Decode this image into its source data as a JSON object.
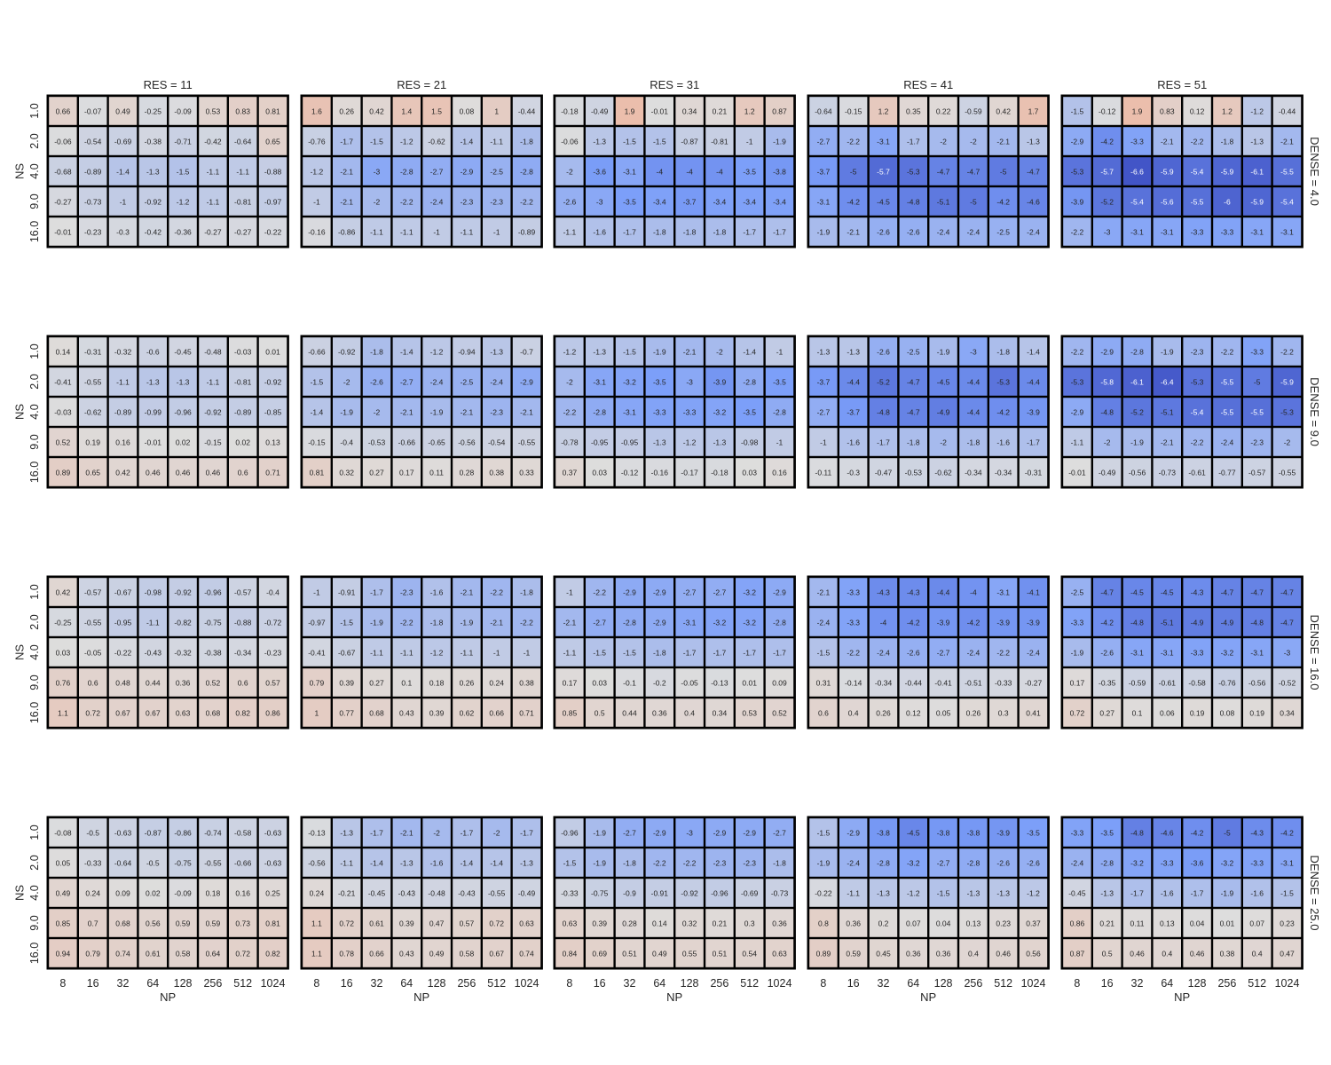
{
  "chart_data": {
    "type": "heatmap",
    "layout": "facet-grid",
    "col_facet_labels": [
      "RES = 11",
      "RES = 21",
      "RES = 31",
      "RES = 41",
      "RES = 51"
    ],
    "row_facet_labels": [
      "DENSE = 4.0",
      "DENSE = 9.0",
      "DENSE = 16.0",
      "DENSE = 25.0"
    ],
    "x_categories": [
      "8",
      "16",
      "32",
      "64",
      "128",
      "256",
      "512",
      "1024"
    ],
    "y_categories": [
      "1.0",
      "2.0",
      "4.0",
      "9.0",
      "16.0"
    ],
    "xlabel": "NP",
    "ylabel": "NS",
    "colormap": "coolwarm",
    "color_range": [
      -7,
      7
    ],
    "panels": [
      [
        [
          [
            0.66,
            -0.07,
            0.49,
            -0.25,
            -0.09,
            0.53,
            0.83,
            0.81
          ],
          [
            -0.06,
            -0.54,
            -0.69,
            -0.38,
            -0.71,
            -0.42,
            -0.64,
            0.65
          ],
          [
            -0.68,
            -0.89,
            -1.4,
            -1.3,
            -1.5,
            -1.1,
            -1.1,
            -0.88
          ],
          [
            -0.27,
            -0.73,
            -1,
            -0.92,
            -1.2,
            -1.1,
            -0.81,
            -0.97
          ],
          [
            -0.01,
            -0.23,
            -0.3,
            -0.42,
            -0.36,
            -0.27,
            -0.27,
            -0.22
          ]
        ],
        [
          [
            1.6,
            0.26,
            0.42,
            1.4,
            1.5,
            0.08,
            1,
            -0.44
          ],
          [
            -0.76,
            -1.7,
            -1.5,
            -1.2,
            -0.62,
            -1.4,
            -1.1,
            -1.8
          ],
          [
            -1.2,
            -2.1,
            -3,
            -2.8,
            -2.7,
            -2.9,
            -2.5,
            -2.8
          ],
          [
            -1,
            -2.1,
            -2,
            -2.2,
            -2.4,
            -2.3,
            -2.3,
            -2.2
          ],
          [
            -0.16,
            -0.86,
            -1.1,
            -1.1,
            -1,
            -1.1,
            -1,
            -0.89
          ]
        ],
        [
          [
            -0.18,
            -0.49,
            1.9,
            -0.01,
            0.34,
            0.21,
            1.2,
            0.87
          ],
          [
            -0.06,
            -1.3,
            -1.5,
            -1.5,
            -0.87,
            -0.81,
            -1,
            -1.9
          ],
          [
            -2,
            -3.6,
            -3.1,
            -4,
            -4,
            -4,
            -3.5,
            -3.8
          ],
          [
            -2.6,
            -3,
            -3.5,
            -3.4,
            -3.7,
            -3.4,
            -3.4,
            -3.4
          ],
          [
            -1.1,
            -1.6,
            -1.7,
            -1.8,
            -1.8,
            -1.8,
            -1.7,
            -1.7
          ]
        ],
        [
          [
            -0.64,
            -0.15,
            1.2,
            0.35,
            0.22,
            -0.59,
            0.42,
            1.7
          ],
          [
            -2.7,
            -2.2,
            -3.1,
            -1.7,
            -2,
            -2,
            -2.1,
            -1.3
          ],
          [
            -3.7,
            -5,
            -5.7,
            -5.3,
            -4.7,
            -4.7,
            -5,
            -4.7
          ],
          [
            -3.1,
            -4.2,
            -4.5,
            -4.8,
            -5.1,
            -5,
            -4.2,
            -4.6
          ],
          [
            -1.9,
            -2.1,
            -2.6,
            -2.6,
            -2.4,
            -2.4,
            -2.5,
            -2.4
          ]
        ],
        [
          [
            -1.5,
            -0.12,
            1.9,
            0.83,
            0.12,
            1.2,
            -1.2,
            -0.44
          ],
          [
            -2.9,
            -4.2,
            -3.3,
            -2.1,
            -2.2,
            -1.8,
            -1.3,
            -2.1
          ],
          [
            -5.3,
            -5.7,
            -6.6,
            -5.9,
            -5.4,
            -5.9,
            -6.1,
            -5.5
          ],
          [
            -3.9,
            -5.2,
            -5.4,
            -5.6,
            -5.5,
            -6,
            -5.9,
            -5.4
          ],
          [
            -2.2,
            -3,
            -3.1,
            -3.1,
            -3.3,
            -3.3,
            -3.1,
            -3.1
          ]
        ]
      ],
      [
        [
          [
            0.14,
            -0.31,
            -0.32,
            -0.6,
            -0.45,
            -0.48,
            -0.03,
            0.01
          ],
          [
            -0.41,
            -0.55,
            -1.1,
            -1.3,
            -1.3,
            -1.1,
            -0.81,
            -0.92
          ],
          [
            -0.03,
            -0.62,
            -0.89,
            -0.99,
            -0.96,
            -0.92,
            -0.89,
            -0.85
          ],
          [
            0.52,
            0.19,
            0.16,
            -0.01,
            0.02,
            -0.15,
            0.02,
            0.13
          ],
          [
            0.89,
            0.65,
            0.42,
            0.46,
            0.46,
            0.46,
            0.6,
            0.71
          ]
        ],
        [
          [
            -0.66,
            -0.92,
            -1.8,
            -1.4,
            -1.2,
            -0.94,
            -1.3,
            -0.7
          ],
          [
            -1.5,
            -2,
            -2.6,
            -2.7,
            -2.4,
            -2.5,
            -2.4,
            -2.9
          ],
          [
            -1.4,
            -1.9,
            -2,
            -2.1,
            -1.9,
            -2.1,
            -2.3,
            -2.1
          ],
          [
            -0.15,
            -0.4,
            -0.53,
            -0.66,
            -0.65,
            -0.56,
            -0.54,
            -0.55
          ],
          [
            0.81,
            0.32,
            0.27,
            0.17,
            0.11,
            0.28,
            0.38,
            0.33
          ]
        ],
        [
          [
            -1.2,
            -1.3,
            -1.5,
            -1.9,
            -2.1,
            -2,
            -1.4,
            -1
          ],
          [
            -2,
            -3.1,
            -3.2,
            -3.5,
            -3,
            -3.9,
            -2.8,
            -3.5
          ],
          [
            -2.2,
            -2.8,
            -3.1,
            -3.3,
            -3.3,
            -3.2,
            -3.5,
            -2.8
          ],
          [
            -0.78,
            -0.95,
            -0.95,
            -1.3,
            -1.2,
            -1.3,
            -0.98,
            -1
          ],
          [
            0.37,
            0.03,
            -0.12,
            -0.16,
            -0.17,
            -0.18,
            0.03,
            0.16
          ]
        ],
        [
          [
            -1.3,
            -1.3,
            -2.6,
            -2.5,
            -1.9,
            -3,
            -1.8,
            -1.4
          ],
          [
            -3.7,
            -4.4,
            -5.2,
            -4.7,
            -4.5,
            -4.4,
            -5.3,
            -4.4
          ],
          [
            -2.7,
            -3.7,
            -4.8,
            -4.7,
            -4.9,
            -4.4,
            -4.2,
            -3.9
          ],
          [
            -1,
            -1.6,
            -1.7,
            -1.8,
            -2,
            -1.8,
            -1.6,
            -1.7
          ],
          [
            -0.11,
            -0.3,
            -0.47,
            -0.53,
            -0.62,
            -0.34,
            -0.34,
            -0.31
          ]
        ],
        [
          [
            -2.2,
            -2.9,
            -2.8,
            -1.9,
            -2.3,
            -2.2,
            -3.3,
            -2.2
          ],
          [
            -5.3,
            -5.8,
            -6.1,
            -6.4,
            -5.3,
            -5.5,
            -5,
            -5.9
          ],
          [
            -2.9,
            -4.8,
            -5.2,
            -5.1,
            -5.4,
            -5.5,
            -5.5,
            -5.3
          ],
          [
            -1.1,
            -2,
            -1.9,
            -2.1,
            -2.2,
            -2.4,
            -2.3,
            -2
          ],
          [
            -0.01,
            -0.49,
            -0.56,
            -0.73,
            -0.61,
            -0.77,
            -0.57,
            -0.55
          ]
        ]
      ],
      [
        [
          [
            0.42,
            -0.57,
            -0.67,
            -0.98,
            -0.92,
            -0.96,
            -0.57,
            -0.4
          ],
          [
            -0.25,
            -0.55,
            -0.95,
            -1.1,
            -0.82,
            -0.75,
            -0.88,
            -0.72
          ],
          [
            0.03,
            -0.05,
            -0.22,
            -0.43,
            -0.32,
            -0.38,
            -0.34,
            -0.23
          ],
          [
            0.76,
            0.6,
            0.48,
            0.44,
            0.36,
            0.52,
            0.6,
            0.57
          ],
          [
            1.1,
            0.72,
            0.67,
            0.67,
            0.63,
            0.68,
            0.82,
            0.86
          ]
        ],
        [
          [
            -1,
            -0.91,
            -1.7,
            -2.3,
            -1.6,
            -2.1,
            -2.2,
            -1.8
          ],
          [
            -0.97,
            -1.5,
            -1.9,
            -2.2,
            -1.8,
            -1.9,
            -2.1,
            -2.2
          ],
          [
            -0.41,
            -0.67,
            -1.1,
            -1.1,
            -1.2,
            -1.1,
            -1,
            -1
          ],
          [
            0.79,
            0.39,
            0.27,
            0.1,
            0.18,
            0.26,
            0.24,
            0.38
          ],
          [
            1,
            0.77,
            0.68,
            0.43,
            0.39,
            0.62,
            0.66,
            0.71
          ]
        ],
        [
          [
            -1,
            -2.2,
            -2.9,
            -2.9,
            -2.7,
            -2.7,
            -3.2,
            -2.9
          ],
          [
            -2.1,
            -2.7,
            -2.8,
            -2.9,
            -3.1,
            -3.2,
            -3.2,
            -2.8
          ],
          [
            -1.1,
            -1.5,
            -1.5,
            -1.8,
            -1.7,
            -1.7,
            -1.7,
            -1.7
          ],
          [
            0.17,
            0.03,
            -0.1,
            -0.2,
            -0.05,
            -0.13,
            0.01,
            0.09
          ],
          [
            0.85,
            0.5,
            0.44,
            0.36,
            0.4,
            0.34,
            0.53,
            0.52
          ]
        ],
        [
          [
            -2.1,
            -3.3,
            -4.3,
            -4.3,
            -4.4,
            -4,
            -3.1,
            -4.1
          ],
          [
            -2.4,
            -3.3,
            -4,
            -4.2,
            -3.9,
            -4.2,
            -3.9,
            -3.9
          ],
          [
            -1.5,
            -2.2,
            -2.4,
            -2.6,
            -2.7,
            -2.4,
            -2.2,
            -2.4
          ],
          [
            0.31,
            -0.14,
            -0.34,
            -0.44,
            -0.41,
            -0.51,
            -0.33,
            -0.27
          ],
          [
            0.6,
            0.4,
            0.26,
            0.12,
            0.05,
            0.26,
            0.3,
            0.41
          ]
        ],
        [
          [
            -2.5,
            -4.7,
            -4.5,
            -4.5,
            -4.3,
            -4.7,
            -4.7,
            -4.7
          ],
          [
            -3.3,
            -4.2,
            -4.8,
            -5.1,
            -4.9,
            -4.9,
            -4.8,
            -4.7
          ],
          [
            -1.9,
            -2.6,
            -3.1,
            -3.1,
            -3.3,
            -3.2,
            -3.1,
            -3
          ],
          [
            0.17,
            -0.35,
            -0.59,
            -0.61,
            -0.58,
            -0.76,
            -0.56,
            -0.52
          ],
          [
            0.72,
            0.27,
            0.1,
            0.06,
            0.19,
            0.08,
            0.19,
            0.34
          ]
        ]
      ],
      [
        [
          [
            -0.08,
            -0.5,
            -0.63,
            -0.87,
            -0.86,
            -0.74,
            -0.58,
            -0.63
          ],
          [
            0.05,
            -0.33,
            -0.64,
            -0.5,
            -0.75,
            -0.55,
            -0.66,
            -0.63
          ],
          [
            0.49,
            0.24,
            0.09,
            0.02,
            -0.09,
            0.18,
            0.16,
            0.25
          ],
          [
            0.85,
            0.7,
            0.68,
            0.56,
            0.59,
            0.59,
            0.73,
            0.81
          ],
          [
            0.94,
            0.79,
            0.74,
            0.61,
            0.58,
            0.64,
            0.72,
            0.82
          ]
        ],
        [
          [
            -0.13,
            -1.3,
            -1.7,
            -2.1,
            -2,
            -1.7,
            -2,
            -1.7
          ],
          [
            -0.56,
            -1.1,
            -1.4,
            -1.3,
            -1.6,
            -1.4,
            -1.4,
            -1.3
          ],
          [
            0.24,
            -0.21,
            -0.45,
            -0.43,
            -0.48,
            -0.43,
            -0.55,
            -0.49
          ],
          [
            1.1,
            0.72,
            0.61,
            0.39,
            0.47,
            0.57,
            0.72,
            0.63
          ],
          [
            1.1,
            0.78,
            0.66,
            0.43,
            0.49,
            0.58,
            0.67,
            0.74
          ]
        ],
        [
          [
            -0.96,
            -1.9,
            -2.7,
            -2.9,
            -3,
            -2.9,
            -2.9,
            -2.7
          ],
          [
            -1.5,
            -1.9,
            -1.8,
            -2.2,
            -2.2,
            -2.3,
            -2.3,
            -1.8
          ],
          [
            -0.33,
            -0.75,
            -0.9,
            -0.91,
            -0.92,
            -0.96,
            -0.69,
            -0.73
          ],
          [
            0.63,
            0.39,
            0.28,
            0.14,
            0.32,
            0.21,
            0.3,
            0.36
          ],
          [
            0.84,
            0.69,
            0.51,
            0.49,
            0.55,
            0.51,
            0.54,
            0.63
          ]
        ],
        [
          [
            -1.5,
            -2.9,
            -3.8,
            -4.5,
            -3.8,
            -3.8,
            -3.9,
            -3.5
          ],
          [
            -1.9,
            -2.4,
            -2.8,
            -3.2,
            -2.7,
            -2.8,
            -2.6,
            -2.6
          ],
          [
            -0.22,
            -1.1,
            -1.3,
            -1.2,
            -1.5,
            -1.3,
            -1.3,
            -1.2
          ],
          [
            0.8,
            0.36,
            0.2,
            0.07,
            0.04,
            0.13,
            0.23,
            0.37
          ],
          [
            0.89,
            0.59,
            0.45,
            0.36,
            0.36,
            0.4,
            0.46,
            0.56
          ]
        ],
        [
          [
            -3.3,
            -3.5,
            -4.8,
            -4.6,
            -4.2,
            -5,
            -4.3,
            -4.2
          ],
          [
            -2.4,
            -2.8,
            -3.2,
            -3.3,
            -3.6,
            -3.2,
            -3.3,
            -3.1
          ],
          [
            -0.45,
            -1.3,
            -1.7,
            -1.6,
            -1.7,
            -1.9,
            -1.6,
            -1.5
          ],
          [
            0.86,
            0.21,
            0.11,
            0.13,
            0.04,
            0.01,
            0.07,
            0.23
          ],
          [
            0.87,
            0.5,
            0.46,
            0.4,
            0.46,
            0.38,
            0.4,
            0.47
          ]
        ]
      ]
    ]
  }
}
